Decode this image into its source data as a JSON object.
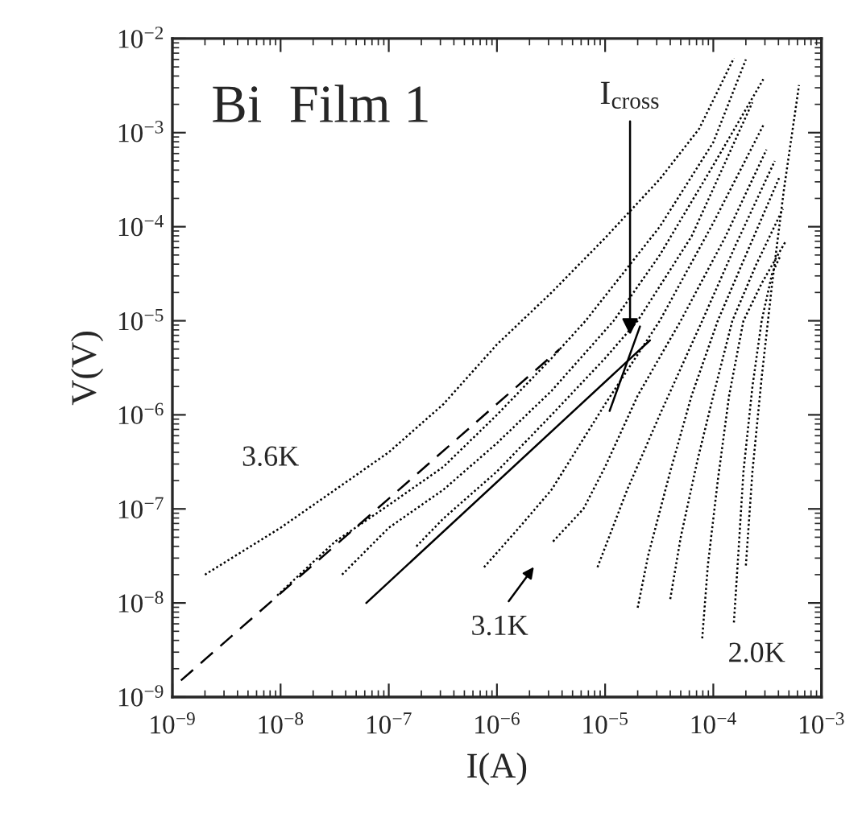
{
  "chart_data": {
    "type": "line",
    "title": "Bi  Film 1",
    "xlabel": "I(A)",
    "ylabel": "V(V)",
    "log": "xy",
    "grid": false,
    "legend": false,
    "marker": "none",
    "xlim": [
      1e-09,
      0.001
    ],
    "ylim": [
      1e-09,
      0.01
    ],
    "xticks": [
      {
        "value": 1e-09,
        "label": "10$^{−9}$"
      },
      {
        "value": 1e-08,
        "label": "10$^{−8}$"
      },
      {
        "value": 1e-07,
        "label": "10$^{−7}$"
      },
      {
        "value": 1e-06,
        "label": "10$^{−6}$"
      },
      {
        "value": 1e-05,
        "label": "10$^{−5}$"
      },
      {
        "value": 0.0001,
        "label": "10$^{−4}$"
      },
      {
        "value": 0.001,
        "label": "10$^{−3}$"
      }
    ],
    "yticks": [
      {
        "value": 1e-09,
        "label": "10$^{−9}$"
      },
      {
        "value": 1e-08,
        "label": "10$^{−8}$"
      },
      {
        "value": 1e-07,
        "label": "10$^{−7}$"
      },
      {
        "value": 1e-06,
        "label": "10$^{−6}$"
      },
      {
        "value": 1e-05,
        "label": "10$^{−5}$"
      },
      {
        "value": 0.0001,
        "label": "10$^{−4}$"
      },
      {
        "value": 0.001,
        "label": "10$^{−3}$"
      },
      {
        "value": 0.01,
        "label": "10$^{−2}$"
      }
    ],
    "series": [
      {
        "line_style": "dotted",
        "color": "#000000",
        "x": [
          2e-09,
          1e-08,
          3.2e-08,
          1e-07,
          3.2e-07,
          1e-06,
          3.2e-06,
          1e-05,
          3.2e-05,
          7.4e-05,
          0.000155
        ],
        "values": [
          2e-08,
          6.3e-08,
          1.6e-07,
          4e-07,
          1.3e-06,
          5.6e-06,
          2e-05,
          7.6e-05,
          0.00032,
          0.0011,
          0.0062
        ]
      },
      {
        "line_style": "dotted",
        "color": "#000000",
        "x": [
          9.3e-09,
          3.2e-08,
          1e-07,
          3.2e-07,
          1e-06,
          3.2e-06,
          6.6e-06,
          3.2e-05,
          0.0001,
          0.0002
        ],
        "values": [
          1.2e-08,
          4.5e-08,
          1.1e-07,
          2.8e-07,
          1e-06,
          4e-06,
          1e-05,
          0.0001,
          0.00079,
          0.006
        ]
      },
      {
        "line_style": "dotted",
        "color": "#000000",
        "x": [
          3.7e-08,
          1e-07,
          3.2e-07,
          1e-06,
          3.2e-06,
          1.2e-05,
          3.2e-05,
          0.0001,
          0.00029
        ],
        "values": [
          2e-08,
          6.3e-08,
          1.6e-07,
          5e-07,
          1.8e-06,
          1e-05,
          5e-05,
          0.00045,
          0.0037
        ]
      },
      {
        "line_style": "dotted",
        "color": "#000000",
        "x": [
          1.8e-07,
          3.2e-07,
          1e-06,
          3.2e-06,
          1e-05,
          2e-05,
          6.3e-05,
          0.00023
        ],
        "values": [
          4e-08,
          7.9e-08,
          2.5e-07,
          1e-06,
          4e-06,
          1e-05,
          7.9e-05,
          0.0021
        ]
      },
      {
        "line_style": "dotted",
        "color": "#000000",
        "x": [
          7.6e-07,
          1.6e-06,
          3.2e-06,
          1e-05,
          3.2e-05,
          0.0001,
          0.00029
        ],
        "values": [
          2.4e-08,
          6.3e-08,
          1.6e-07,
          1.3e-06,
          1e-05,
          0.00011,
          0.0012
        ]
      },
      {
        "line_style": "dotted",
        "color": "#000000",
        "x": [
          3.3e-06,
          6.3e-06,
          1e-05,
          2e-05,
          5e-05,
          0.00013,
          0.00031
        ],
        "values": [
          4.5e-08,
          1e-07,
          2.8e-07,
          1.6e-06,
          1e-05,
          7.9e-05,
          0.00066
        ]
      },
      {
        "line_style": "dotted",
        "color": "#000000",
        "x": [
          8.5e-06,
          1.6e-05,
          3.2e-05,
          7.9e-05,
          0.00016,
          0.00037
        ],
        "values": [
          2.4e-08,
          1.6e-07,
          1e-06,
          1e-05,
          6.3e-05,
          0.0005
        ]
      },
      {
        "line_style": "dotted",
        "color": "#000000",
        "x": [
          2e-05,
          2.5e-05,
          4e-05,
          6.3e-05,
          0.00011,
          0.0002,
          0.00041
        ],
        "values": [
          8.9e-09,
          3.2e-08,
          2.5e-07,
          1.6e-06,
          1e-05,
          5e-05,
          0.00034
        ]
      },
      {
        "line_style": "dotted",
        "color": "#000000",
        "x": [
          4e-05,
          5e-05,
          7.1e-05,
          0.0001,
          0.00015,
          0.00025,
          0.00044
        ],
        "values": [
          1.1e-08,
          5e-08,
          3.2e-07,
          1.6e-06,
          1e-05,
          4e-05,
          0.000155
        ]
      },
      {
        "line_style": "dotted",
        "color": "#000000",
        "x": [
          7.9e-05,
          8.9e-05,
          0.00011,
          0.00014,
          0.00019,
          0.00028,
          0.00047
        ],
        "values": [
          4.2e-09,
          2.5e-08,
          2e-07,
          1.6e-06,
          1e-05,
          2.5e-05,
          7.1e-05
        ]
      },
      {
        "line_style": "dotted",
        "color": "#000000",
        "x": [
          0.000155,
          0.00017,
          0.00019,
          0.00023,
          0.00028,
          0.00035,
          0.00042
        ],
        "values": [
          6.2e-09,
          3.2e-08,
          2.5e-07,
          2e-06,
          1e-05,
          3.2e-05,
          5e-05
        ]
      },
      {
        "line_style": "dotted",
        "color": "#000000",
        "x": [
          0.0002,
          0.00023,
          0.00028,
          0.00035,
          0.00045,
          0.00062
        ],
        "values": [
          2.5e-08,
          2.5e-07,
          2.5e-06,
          2.5e-05,
          0.00025,
          0.0032
        ]
      },
      {
        "line_style": "dashed",
        "color": "#000000",
        "x": [
          1.2e-09,
          3.8e-06
        ],
        "values": [
          1.5e-09,
          5e-06
        ]
      },
      {
        "line_style": "solid",
        "color": "#000000",
        "x": [
          6.2e-08,
          2.6e-05
        ],
        "values": [
          1e-08,
          6.2e-06
        ]
      },
      {
        "line_style": "solid",
        "color": "#000000",
        "x": [
          1.1e-05,
          2.1e-05
        ],
        "values": [
          1.1e-06,
          8.7e-06
        ]
      }
    ],
    "annotations": [
      {
        "text": "I$_{cross}$",
        "x": 1.7e-05,
        "y": 7.1e-06
      },
      "3.1K",
      "3.6K",
      "2.0K"
    ]
  }
}
